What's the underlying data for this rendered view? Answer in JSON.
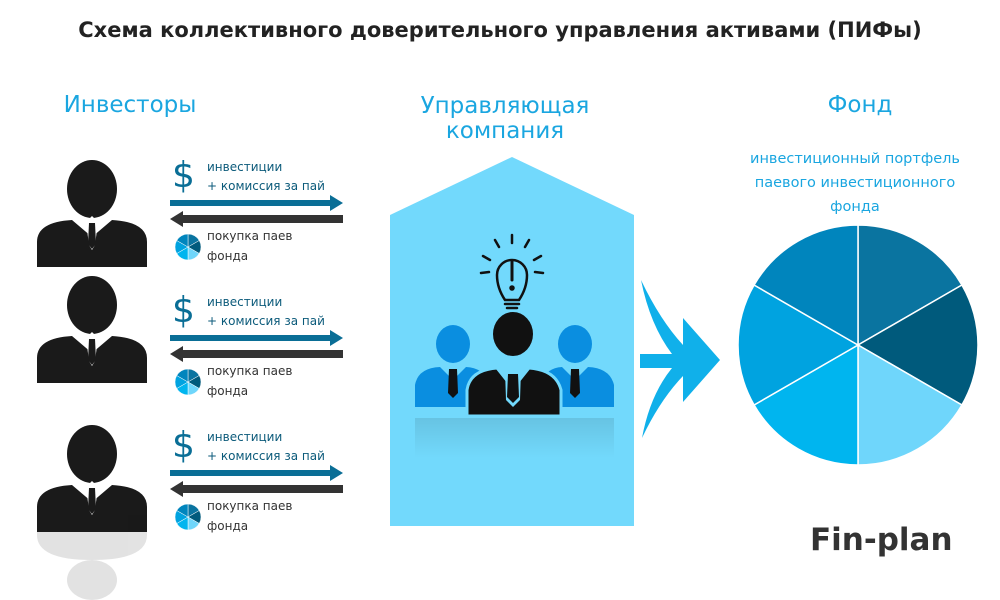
{
  "title": "Схема коллективного доверительного управления активами (ПИФы)",
  "investors": {
    "heading": "Инвесторы",
    "rows": [
      {
        "invest_label": "инвестиции",
        "commission_label": "+ комиссия за пай",
        "purchase_label_1": "покупка паев",
        "purchase_label_2": "фонда"
      },
      {
        "invest_label": "инвестиции",
        "commission_label": "+ комиссия за пай",
        "purchase_label_1": "покупка паев",
        "purchase_label_2": "фонда"
      },
      {
        "invest_label": "инвестиции",
        "commission_label": "+ комиссия за пай",
        "purchase_label_1": "покупка паев",
        "purchase_label_2": "фонда"
      }
    ],
    "currency_symbol": "$"
  },
  "management_company": {
    "heading_line1": "Управляющая",
    "heading_line2": "компания"
  },
  "fund": {
    "heading": "Фонд",
    "portfolio_line1": "инвестиционный портфель",
    "portfolio_line2": "паевого инвестиционного",
    "portfolio_line3": "фонда",
    "slice_colors": [
      "#0a74a0",
      "#005a7c",
      "#6fd6fb",
      "#00b5ef",
      "#00a3e0",
      "#0085bd"
    ]
  },
  "colors": {
    "accent": "#1aa6e0",
    "building": "#72d9fc",
    "arrow_out": "#0a6e96",
    "arrow_in": "#333333",
    "person": "#1a1a1a"
  },
  "brand": "Fin-plan"
}
